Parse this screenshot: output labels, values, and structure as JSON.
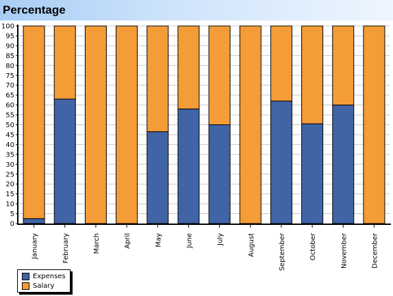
{
  "chart_data": {
    "type": "bar",
    "stacked": true,
    "title": "Percentage",
    "categories": [
      "January",
      "February",
      "March",
      "April",
      "May",
      "June",
      "July",
      "August",
      "September",
      "October",
      "November",
      "December"
    ],
    "series": [
      {
        "name": "Expenses",
        "color": "#4164a6",
        "values": [
          2.5,
          63,
          0,
          0,
          46.5,
          58,
          50,
          0,
          62,
          50.5,
          60,
          0
        ]
      },
      {
        "name": "Salary",
        "color": "#f39c38",
        "values": [
          97.5,
          37,
          100,
          100,
          53.5,
          42,
          50,
          100,
          38,
          49.5,
          40,
          100
        ]
      }
    ],
    "ylim": [
      0,
      100
    ],
    "yticks": [
      "0",
      "5",
      "10",
      "15",
      "20",
      "25",
      "30",
      "35",
      "40",
      "45",
      "50",
      "55",
      "60",
      "65",
      "70",
      "75",
      "80",
      "85",
      "90",
      "95",
      "100"
    ],
    "grid": true,
    "legend_position": "bottom-left"
  }
}
